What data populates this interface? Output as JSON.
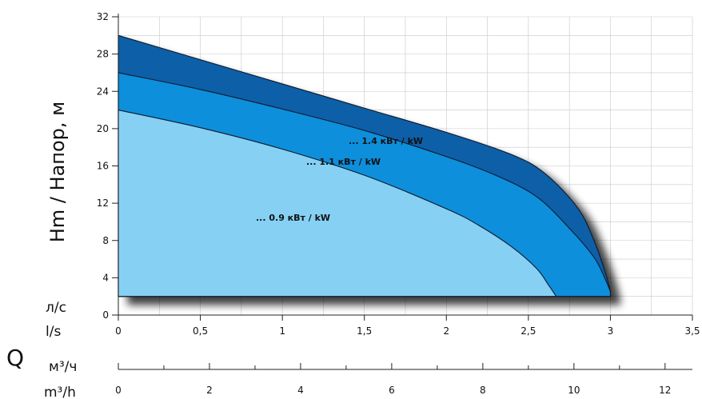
{
  "chart_data": {
    "type": "area",
    "ylabel": "Hm / Напор, м",
    "xlabel": "Q",
    "ylim": [
      0,
      32
    ],
    "yticks": [
      0,
      4,
      8,
      12,
      16,
      20,
      24,
      28,
      32
    ],
    "y_tick_labels": [
      "0",
      "4",
      "8",
      "12",
      "16",
      "20",
      "24",
      "28",
      "32"
    ],
    "x_axes": [
      {
        "unit_label": "л/с",
        "unit_label_alt": "l/s",
        "xlim": [
          0,
          3.5
        ],
        "ticks": [
          0,
          0.5,
          1,
          1.5,
          2,
          2.5,
          3,
          3.5
        ],
        "tick_labels": [
          "0",
          "0,5",
          "1",
          "1,5",
          "2",
          "2,5",
          "3",
          "3,5"
        ]
      },
      {
        "unit_label": "м³/ч",
        "unit_label_alt": "m³/h",
        "xlim": [
          0,
          12.6
        ],
        "ticks": [
          0,
          2,
          4,
          6,
          8,
          10,
          12
        ],
        "tick_labels": [
          "0",
          "2",
          "4",
          "6",
          "8",
          "10",
          "12"
        ]
      }
    ],
    "grid": true,
    "series": [
      {
        "name": "... 1.4 кВт / kW",
        "color": "#0a5ea8",
        "x": [
          0,
          0.5,
          1,
          1.5,
          2,
          2.4,
          2.6,
          2.8,
          2.9,
          2.97,
          3.0
        ],
        "y": [
          30,
          27.4,
          24.8,
          22.2,
          19.6,
          17.2,
          15.2,
          11.5,
          8.0,
          4.5,
          2.5
        ]
      },
      {
        "name": "... 1.1 кВт / kW",
        "color": "#0e8fdc",
        "x": [
          0,
          0.5,
          1,
          1.5,
          2,
          2.3,
          2.55,
          2.75,
          2.9,
          2.97,
          3.0
        ],
        "y": [
          26,
          24.2,
          22.1,
          19.8,
          17.0,
          15.0,
          12.7,
          9.3,
          6.2,
          3.8,
          2.5
        ]
      },
      {
        "name": "... 0.9 кВт / kW",
        "color": "#86d0f4",
        "x": [
          0,
          0.5,
          1,
          1.5,
          2,
          2.2,
          2.4,
          2.55,
          2.62,
          2.67
        ],
        "y": [
          22,
          20.1,
          17.8,
          15.0,
          11.4,
          9.6,
          7.3,
          5.0,
          3.3,
          2.0
        ]
      }
    ],
    "baseline_y": 2
  }
}
